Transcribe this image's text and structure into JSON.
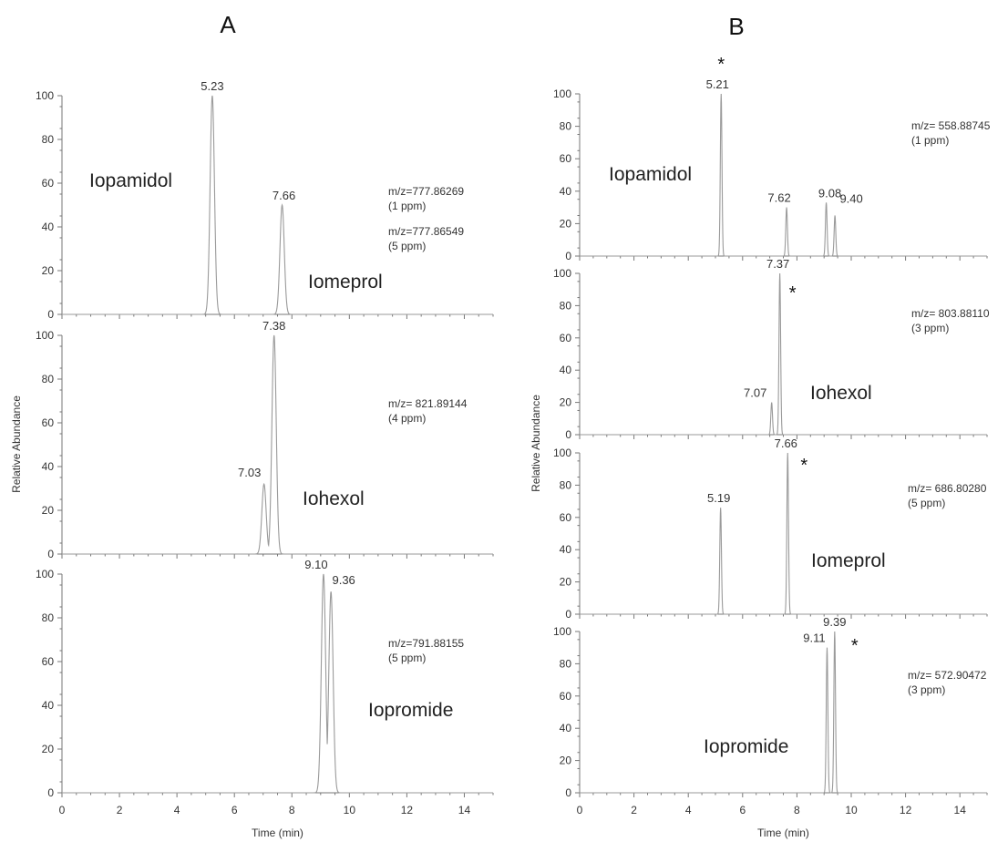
{
  "chart_data": {
    "type": "line",
    "description_units": "x: time in minutes, y: relative abundance (%)",
    "panels": [
      {
        "letter": "A",
        "ylabel": "Relative Abundance",
        "xlabel": "Time (min)",
        "xlim": [
          0,
          15
        ],
        "x_ticks": [
          0,
          2,
          4,
          6,
          8,
          10,
          12,
          14
        ],
        "tracks": [
          {
            "compound": "Iopamidol",
            "compound2": "Iomeprol",
            "mz_lines": [
              "m/z=777.86269",
              "(1 ppm)",
              "m/z=777.86549",
              "(5 ppm)"
            ],
            "y_ticks": [
              0,
              20,
              40,
              60,
              80,
              100
            ],
            "peaks": [
              {
                "rt": 5.23,
                "height": 100,
                "label": "5.23"
              },
              {
                "rt": 7.66,
                "height": 50,
                "label": "7.66"
              }
            ]
          },
          {
            "compound": "Iohexol",
            "mz_lines": [
              "m/z= 821.89144",
              "(4 ppm)"
            ],
            "y_ticks": [
              0,
              20,
              40,
              60,
              80,
              100
            ],
            "peaks": [
              {
                "rt": 7.03,
                "height": 32,
                "label": "7.03"
              },
              {
                "rt": 7.38,
                "height": 100,
                "label": "7.38"
              }
            ]
          },
          {
            "compound": "Iopromide",
            "mz_lines": [
              "m/z=791.88155",
              "(5 ppm)"
            ],
            "y_ticks": [
              0,
              20,
              40,
              60,
              80,
              100
            ],
            "peaks": [
              {
                "rt": 9.1,
                "height": 100,
                "label": "9.10"
              },
              {
                "rt": 9.36,
                "height": 92,
                "label": "9.36"
              }
            ]
          }
        ]
      },
      {
        "letter": "B",
        "ylabel": "Relative Abundance",
        "xlabel": "Time (min)",
        "xlim": [
          0,
          15
        ],
        "x_ticks": [
          0,
          2,
          4,
          6,
          8,
          10,
          12,
          14
        ],
        "tracks": [
          {
            "compound": "Iopamidol",
            "mz_lines": [
              "m/z= 558.88745",
              "(1 ppm)"
            ],
            "y_ticks": [
              0,
              20,
              40,
              60,
              80,
              100
            ],
            "star": "*",
            "peaks": [
              {
                "rt": 5.21,
                "height": 100,
                "label": "5.21",
                "star": true
              },
              {
                "rt": 7.62,
                "height": 30,
                "label": "7.62"
              },
              {
                "rt": 9.08,
                "height": 33,
                "label": "9.08"
              },
              {
                "rt": 9.4,
                "height": 25,
                "label": "9.40"
              }
            ]
          },
          {
            "compound": "Iohexol",
            "mz_lines": [
              "m/z= 803.88110",
              "(3 ppm)"
            ],
            "y_ticks": [
              0,
              20,
              40,
              60,
              80,
              100
            ],
            "star": "*",
            "peaks": [
              {
                "rt": 7.07,
                "height": 20,
                "label": "7.07"
              },
              {
                "rt": 7.37,
                "height": 100,
                "label": "7.37",
                "star": true
              }
            ]
          },
          {
            "compound": "Iomeprol",
            "mz_lines": [
              "m/z= 686.80280",
              "(5 ppm)"
            ],
            "y_ticks": [
              0,
              20,
              40,
              60,
              80,
              100
            ],
            "star": "*",
            "peaks": [
              {
                "rt": 5.19,
                "height": 66,
                "label": "5.19"
              },
              {
                "rt": 7.66,
                "height": 100,
                "label": "7.66",
                "star": true
              }
            ]
          },
          {
            "compound": "Iopromide",
            "mz_lines": [
              "m/z= 572.90472",
              "(3 ppm)"
            ],
            "y_ticks": [
              0,
              20,
              40,
              60,
              80,
              100
            ],
            "star": "*",
            "peaks": [
              {
                "rt": 9.11,
                "height": 90,
                "label": "9.11"
              },
              {
                "rt": 9.39,
                "height": 100,
                "label": "9.39",
                "star": true
              }
            ]
          }
        ]
      }
    ]
  }
}
